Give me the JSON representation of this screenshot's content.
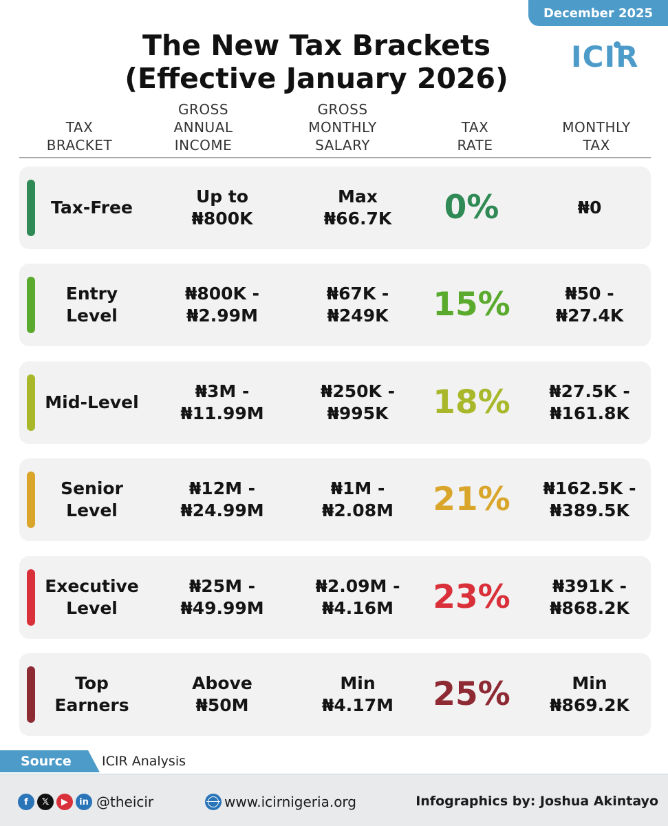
{
  "date_badge": "December 2025",
  "logo_text": "ICIR",
  "title_line1": "The New Tax Brackets",
  "title_line2": "(Effective January 2026)",
  "columns": [
    "TAX\nBRACKET",
    "GROSS\nANNUAL\nINCOME",
    "GROSS\nMONTHLY\nSALARY",
    "TAX\nRATE",
    "MONTHLY\nTAX"
  ],
  "rows": [
    {
      "bracket": "Tax-Free",
      "annual": "Up to\n₦800K",
      "monthly": "Max\n₦66.7K",
      "rate": "0%",
      "tax": "₦0",
      "color": "#2f8a55"
    },
    {
      "bracket": "Entry\nLevel",
      "annual": "₦800K -\n₦2.99M",
      "monthly": "₦67K -\n₦249K",
      "rate": "15%",
      "tax": "₦50 -\n₦27.4K",
      "color": "#5aaa2e"
    },
    {
      "bracket": "Mid-Level",
      "annual": "₦3M -\n₦11.99M",
      "monthly": "₦250K -\n₦995K",
      "rate": "18%",
      "tax": "₦27.5K -\n₦161.8K",
      "color": "#a8b82a"
    },
    {
      "bracket": "Senior\nLevel",
      "annual": "₦12M -\n₦24.99M",
      "monthly": "₦1M -\n₦2.08M",
      "rate": "21%",
      "tax": "₦162.5K -\n₦389.5K",
      "color": "#d9a52a"
    },
    {
      "bracket": "Executive\nLevel",
      "annual": "₦25M -\n₦49.99M",
      "monthly": "₦2.09M -\n₦4.16M",
      "rate": "23%",
      "tax": "₦391K -\n₦868.2K",
      "color": "#d9303a"
    },
    {
      "bracket": "Top\nEarners",
      "annual": "Above\n₦50M",
      "monthly": "Min\n₦4.17M",
      "rate": "25%",
      "tax": "Min\n₦869.2K",
      "color": "#8e2a33"
    }
  ],
  "source_label": "Source",
  "source_value": "ICIR Analysis",
  "footer": {
    "social_icons": [
      {
        "icon": "facebook-icon",
        "glyph": "f",
        "color": "#2a74b8"
      },
      {
        "icon": "x-icon",
        "glyph": "𝕏",
        "color": "#111111"
      },
      {
        "icon": "youtube-icon",
        "glyph": "▶",
        "color": "#d9303a"
      },
      {
        "icon": "linkedin-icon",
        "glyph": "in",
        "color": "#2a74b8"
      }
    ],
    "handle": "@theicir",
    "website": "www.icirnigeria.org",
    "credit": "Infographics by: Joshua Akintayo"
  }
}
